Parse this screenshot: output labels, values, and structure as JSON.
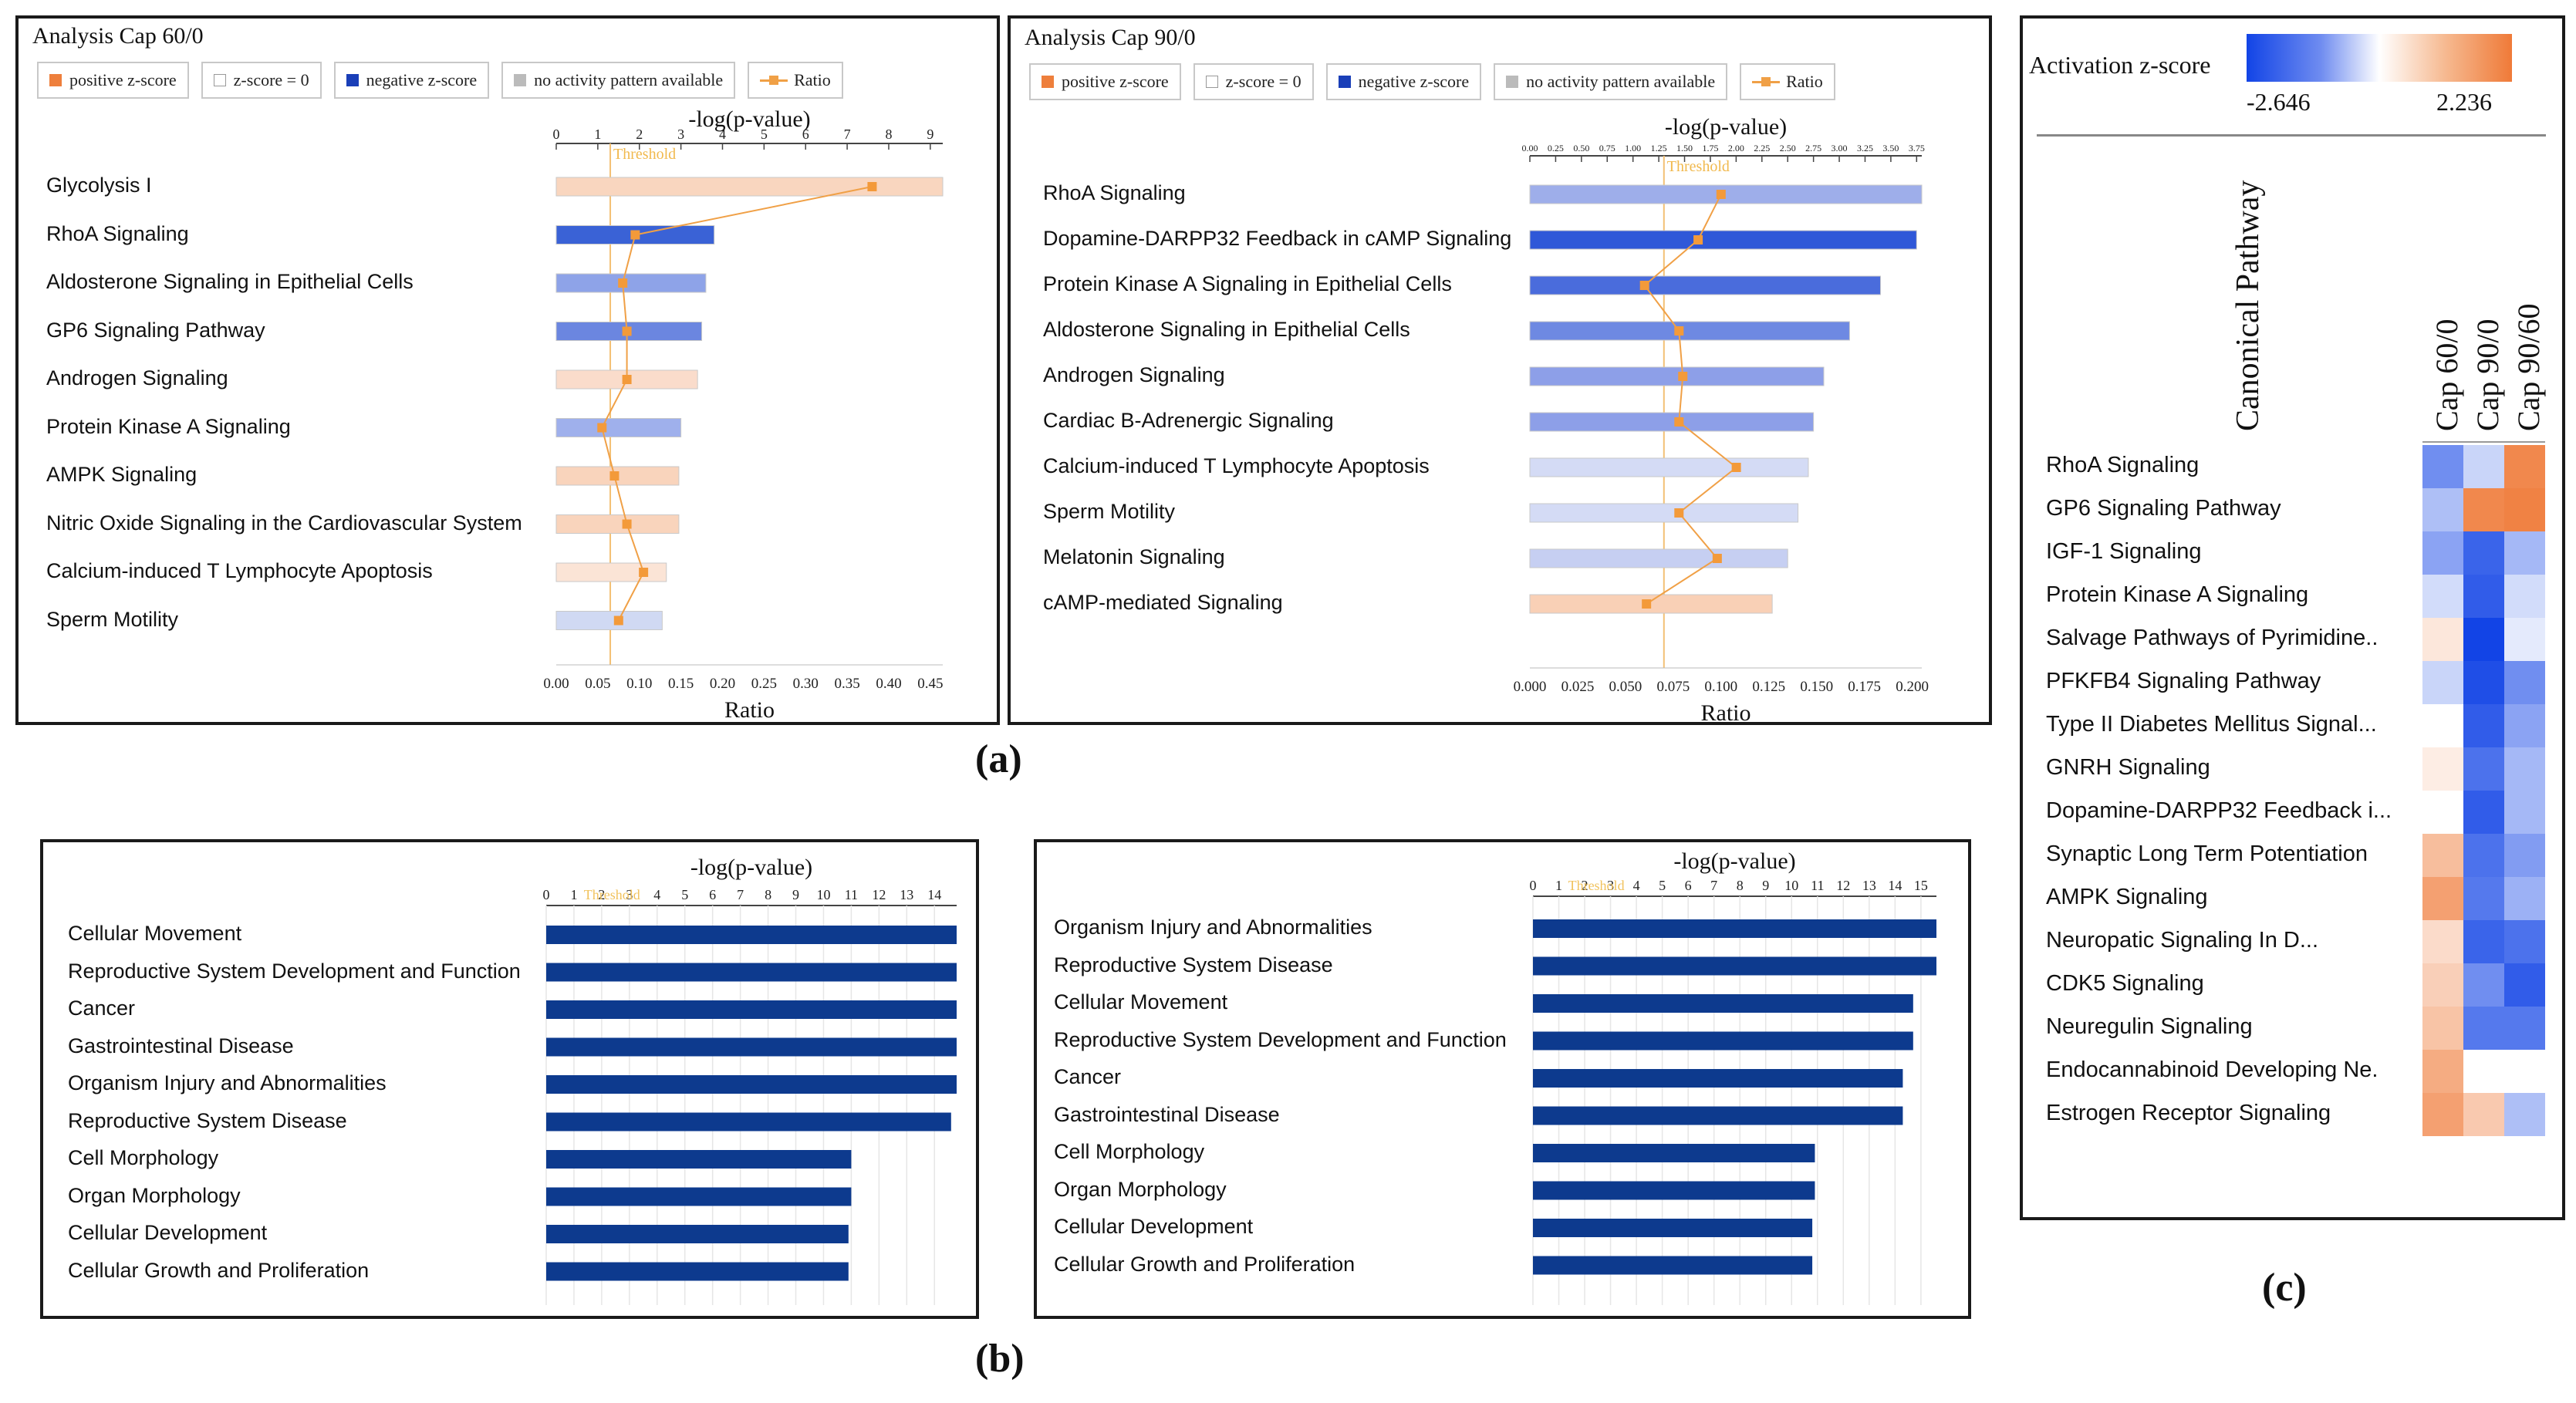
{
  "legend": {
    "positive": "positive z-score",
    "zero": "z-score = 0",
    "negative": "negative z-score",
    "na": "no activity pattern available",
    "ratio": "Ratio"
  },
  "figure_labels": {
    "a": "(a)",
    "b": "(b)",
    "c": "(c)"
  },
  "chart_data": [
    {
      "id": "a1",
      "type": "bar",
      "title": "Analysis Cap 60/0",
      "xlabel_top": "-log(p-value)",
      "xlabel_bottom": "Ratio",
      "threshold_label": "Threshold",
      "top_ticks": [
        "0",
        "1",
        "2",
        "3",
        "4",
        "5",
        "6",
        "7",
        "8",
        "9"
      ],
      "top_range": [
        0,
        9.3
      ],
      "bottom_ticks": [
        "0.00",
        "0.05",
        "0.10",
        "0.15",
        "0.20",
        "0.25",
        "0.30",
        "0.35",
        "0.40",
        "0.45"
      ],
      "bottom_range": [
        0,
        0.465
      ],
      "threshold": 1.3,
      "categories": [
        "Glycolysis I",
        "RhoA Signaling",
        "Aldosterone Signaling in Epithelial Cells",
        "GP6 Signaling Pathway",
        "Androgen Signaling",
        "Protein Kinase A Signaling",
        "AMPK Signaling",
        "Nitric Oxide Signaling in the Cardiovascular System",
        "Calcium-induced T Lymphocyte Apoptosis",
        "Sperm Motility"
      ],
      "neglogp": [
        9.3,
        3.8,
        3.6,
        3.5,
        3.4,
        3.0,
        2.95,
        2.95,
        2.65,
        2.55
      ],
      "ratio": [
        0.38,
        0.095,
        0.08,
        0.085,
        0.085,
        0.055,
        0.07,
        0.085,
        0.105,
        0.075
      ],
      "colors": [
        "#f9d6bf",
        "#3a62d6",
        "#8ea3e8",
        "#6b86e0",
        "#fadccb",
        "#9fb0ec",
        "#f9d4bc",
        "#f9d4bc",
        "#fbe4d6",
        "#d0d9f3"
      ]
    },
    {
      "id": "a2",
      "type": "bar",
      "title": "Analysis Cap 90/0",
      "xlabel_top": "-log(p-value)",
      "xlabel_bottom": "Ratio",
      "threshold_label": "Threshold",
      "top_ticks": [
        "0.00",
        "0.25",
        "0.50",
        "0.75",
        "1.00",
        "1.25",
        "1.50",
        "1.75",
        "2.00",
        "2.25",
        "2.50",
        "2.75",
        "3.00",
        "3.25",
        "3.50",
        "3.75"
      ],
      "top_range": [
        0,
        3.8
      ],
      "bottom_ticks": [
        "0.000",
        "0.025",
        "0.050",
        "0.075",
        "0.100",
        "0.125",
        "0.150",
        "0.175",
        "0.200"
      ],
      "bottom_range": [
        0,
        0.205
      ],
      "threshold": 1.3,
      "categories": [
        "RhoA Signaling",
        "Dopamine-DARPP32 Feedback in cAMP Signaling",
        "Protein Kinase A Signaling in Epithelial Cells",
        "Aldosterone Signaling in Epithelial Cells",
        "Androgen Signaling",
        "Cardiac Β-Adrenergic Signaling",
        "Calcium-induced T Lymphocyte Apoptosis",
        "Sperm Motility",
        "Melatonin Signaling",
        "cAMP-mediated Signaling"
      ],
      "neglogp": [
        3.8,
        3.75,
        3.4,
        3.1,
        2.85,
        2.75,
        2.7,
        2.6,
        2.5,
        2.35
      ],
      "ratio": [
        0.1,
        0.088,
        0.06,
        0.078,
        0.08,
        0.078,
        0.108,
        0.078,
        0.098,
        0.061
      ],
      "colors": [
        "#9eaeea",
        "#2f58d8",
        "#4a6cdc",
        "#6e89e2",
        "#8d9fe8",
        "#8d9fe8",
        "#d4dbf5",
        "#d4dbf5",
        "#c6cff2",
        "#f9d0b6"
      ]
    },
    {
      "id": "b1",
      "type": "bar",
      "xlabel_top": "-log(p-value)",
      "threshold_label": "Threshold",
      "top_ticks": [
        "0",
        "1",
        "2",
        "3",
        "4",
        "5",
        "6",
        "7",
        "8",
        "9",
        "10",
        "11",
        "12",
        "13",
        "14"
      ],
      "top_range": [
        0,
        14.8
      ],
      "threshold": 1.3,
      "categories": [
        "Cellular Movement",
        "Reproductive System Development and Function",
        "Cancer",
        "Gastrointestinal Disease",
        "Organism Injury and Abnormalities",
        "Reproductive System Disease",
        "Cell Morphology",
        "Organ Morphology",
        "Cellular Development",
        "Cellular Growth and Proliferation"
      ],
      "values": [
        14.8,
        14.8,
        14.8,
        14.8,
        14.8,
        14.6,
        11.0,
        11.0,
        10.9,
        10.9
      ]
    },
    {
      "id": "b2",
      "type": "bar",
      "xlabel_top": "-log(p-value)",
      "threshold_label": "Threshold",
      "top_ticks": [
        "0",
        "1",
        "2",
        "3",
        "4",
        "5",
        "6",
        "7",
        "8",
        "9",
        "10",
        "11",
        "12",
        "13",
        "14",
        "15"
      ],
      "top_range": [
        0,
        15.6
      ],
      "threshold": 1.3,
      "categories": [
        "Organism Injury and Abnormalities",
        "Reproductive System Disease",
        "Cellular Movement",
        "Reproductive System Development and Function",
        "Cancer",
        "Gastrointestinal Disease",
        "Cell Morphology",
        "Organ Morphology",
        "Cellular Development",
        "Cellular Growth and Proliferation"
      ],
      "values": [
        15.6,
        15.6,
        14.7,
        14.7,
        14.3,
        14.3,
        10.9,
        10.9,
        10.8,
        10.8
      ]
    },
    {
      "id": "c",
      "type": "heatmap",
      "colorbar_title": "Activation z-score",
      "vmin": -2.646,
      "vmax": 2.236,
      "vmin_label": "-2.646",
      "vmax_label": "2.236",
      "row_header": "Canonical Pathway",
      "columns": [
        "Cap 60/0",
        "Cap 90/0",
        "Cap 90/60"
      ],
      "rows": [
        "RhoA Signaling",
        "GP6 Signaling Pathway",
        "IGF-1 Signaling",
        "Protein Kinase A Signaling",
        "Salvage Pathways of Pyrimidine..",
        "PFKFB4 Signaling Pathway",
        "Type II Diabetes Mellitus Signal...",
        "GNRH Signaling",
        "Dopamine-DARPP32 Feedback i...",
        "Synaptic Long Term Potentiation",
        "AMPK Signaling",
        "Neuropatic Signaling In D...",
        "CDK5 Signaling",
        "Neuregulin Signaling",
        "Endocannabinoid Developing Ne.",
        "Estrogen Receptor Signaling"
      ],
      "values": [
        [
          -1.6,
          -0.6,
          2.0
        ],
        [
          -0.9,
          2.0,
          2.1
        ],
        [
          -1.3,
          -2.2,
          -1.0
        ],
        [
          -0.5,
          -2.3,
          -0.5
        ],
        [
          0.4,
          -2.646,
          -0.3
        ],
        [
          -0.6,
          -2.5,
          -1.6
        ],
        [
          0.0,
          -2.3,
          -1.3
        ],
        [
          0.3,
          -2.0,
          -1.0
        ],
        [
          0.0,
          -2.3,
          -1.0
        ],
        [
          1.1,
          -2.0,
          -1.4
        ],
        [
          1.6,
          -1.9,
          -1.1
        ],
        [
          0.6,
          -2.2,
          -2.0
        ],
        [
          0.8,
          -1.6,
          -2.3
        ],
        [
          1.0,
          -1.9,
          -1.9
        ],
        [
          1.4,
          null,
          null
        ],
        [
          1.6,
          0.9,
          -0.9
        ]
      ]
    }
  ]
}
